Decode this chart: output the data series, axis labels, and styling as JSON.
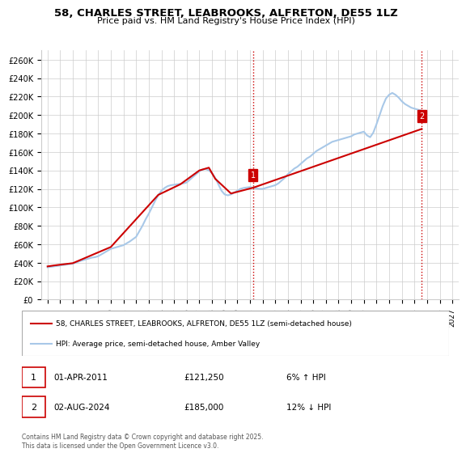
{
  "title": "58, CHARLES STREET, LEABROOKS, ALFRETON, DE55 1LZ",
  "subtitle": "Price paid vs. HM Land Registry's House Price Index (HPI)",
  "ylabel_ticks": [
    "£0",
    "£20K",
    "£40K",
    "£60K",
    "£80K",
    "£100K",
    "£120K",
    "£140K",
    "£160K",
    "£180K",
    "£200K",
    "£220K",
    "£240K",
    "£260K"
  ],
  "ytick_values": [
    0,
    20000,
    40000,
    60000,
    80000,
    100000,
    120000,
    140000,
    160000,
    180000,
    200000,
    220000,
    240000,
    260000
  ],
  "ylim": [
    0,
    270000
  ],
  "xlim_start": 1995.0,
  "xlim_end": 2027.5,
  "xtick_years": [
    1995,
    1996,
    1997,
    1998,
    1999,
    2000,
    2001,
    2002,
    2003,
    2004,
    2005,
    2006,
    2007,
    2008,
    2009,
    2010,
    2011,
    2012,
    2013,
    2014,
    2015,
    2016,
    2017,
    2018,
    2019,
    2020,
    2021,
    2022,
    2023,
    2024,
    2025,
    2026,
    2027
  ],
  "hpi_color": "#a8c8e8",
  "price_color": "#cc0000",
  "marker1_x": 2011.25,
  "marker2_x": 2024.58,
  "marker1_label": "1",
  "marker2_label": "2",
  "marker1_price": 121250,
  "marker2_price": 185000,
  "legend_line1": "58, CHARLES STREET, LEABROOKS, ALFRETON, DE55 1LZ (semi-detached house)",
  "legend_line2": "HPI: Average price, semi-detached house, Amber Valley",
  "annotation1": "1    01-APR-2011         £121,250         6% ↑ HPI",
  "annotation2": "2    02-AUG-2024         £185,000         12% ↓ HPI",
  "footnote": "Contains HM Land Registry data © Crown copyright and database right 2025.\nThis data is licensed under the Open Government Licence v3.0.",
  "bg_color": "#ffffff",
  "plot_bg_color": "#ffffff",
  "grid_color": "#cccccc",
  "hpi_data_x": [
    1995.0,
    1995.25,
    1995.5,
    1995.75,
    1996.0,
    1996.25,
    1996.5,
    1996.75,
    1997.0,
    1997.25,
    1997.5,
    1997.75,
    1998.0,
    1998.25,
    1998.5,
    1998.75,
    1999.0,
    1999.25,
    1999.5,
    1999.75,
    2000.0,
    2000.25,
    2000.5,
    2000.75,
    2001.0,
    2001.25,
    2001.5,
    2001.75,
    2002.0,
    2002.25,
    2002.5,
    2002.75,
    2003.0,
    2003.25,
    2003.5,
    2003.75,
    2004.0,
    2004.25,
    2004.5,
    2004.75,
    2005.0,
    2005.25,
    2005.5,
    2005.75,
    2006.0,
    2006.25,
    2006.5,
    2006.75,
    2007.0,
    2007.25,
    2007.5,
    2007.75,
    2008.0,
    2008.25,
    2008.5,
    2008.75,
    2009.0,
    2009.25,
    2009.5,
    2009.75,
    2010.0,
    2010.25,
    2010.5,
    2010.75,
    2011.0,
    2011.25,
    2011.5,
    2011.75,
    2012.0,
    2012.25,
    2012.5,
    2012.75,
    2013.0,
    2013.25,
    2013.5,
    2013.75,
    2014.0,
    2014.25,
    2014.5,
    2014.75,
    2015.0,
    2015.25,
    2015.5,
    2015.75,
    2016.0,
    2016.25,
    2016.5,
    2016.75,
    2017.0,
    2017.25,
    2017.5,
    2017.75,
    2018.0,
    2018.25,
    2018.5,
    2018.75,
    2019.0,
    2019.25,
    2019.5,
    2019.75,
    2020.0,
    2020.25,
    2020.5,
    2020.75,
    2021.0,
    2021.25,
    2021.5,
    2021.75,
    2022.0,
    2022.25,
    2022.5,
    2022.75,
    2023.0,
    2023.25,
    2023.5,
    2023.75,
    2024.0,
    2024.25,
    2024.5,
    2024.75
  ],
  "hpi_data_y": [
    35000,
    35500,
    36000,
    36500,
    37000,
    37500,
    38000,
    38500,
    39000,
    40000,
    41500,
    42500,
    43500,
    44500,
    45500,
    46000,
    47000,
    49000,
    51000,
    53000,
    55000,
    56000,
    57000,
    58000,
    59000,
    61000,
    63000,
    65500,
    68000,
    74000,
    80000,
    87000,
    93000,
    100000,
    107000,
    113000,
    118000,
    121000,
    123000,
    124000,
    124500,
    125000,
    125500,
    126000,
    127000,
    130000,
    133000,
    136000,
    139000,
    141000,
    141500,
    140000,
    137000,
    132000,
    125000,
    118000,
    114000,
    113000,
    114000,
    116000,
    118000,
    120000,
    121000,
    121500,
    122000,
    121250,
    120500,
    120000,
    120000,
    121000,
    122000,
    123000,
    124000,
    126000,
    129000,
    132000,
    136000,
    139000,
    142000,
    144000,
    147000,
    150000,
    153000,
    155000,
    158000,
    161000,
    163000,
    165000,
    167000,
    169000,
    171000,
    172000,
    173000,
    174000,
    175000,
    176000,
    177000,
    179000,
    180000,
    181000,
    182000,
    178000,
    176000,
    181000,
    190000,
    200000,
    210000,
    218000,
    222000,
    224000,
    222000,
    219000,
    215000,
    212000,
    210000,
    208000,
    207000,
    206000,
    205000,
    204000
  ],
  "price_data_x": [
    1995.0,
    1995.5,
    1997.0,
    2000.0,
    2003.75,
    2005.5,
    2007.0,
    2007.75,
    2008.25,
    2009.5,
    2011.25,
    2024.58
  ],
  "price_data_y": [
    36000,
    37000,
    39500,
    57000,
    113500,
    125000,
    140000,
    143000,
    131000,
    115000,
    121250,
    185000
  ]
}
